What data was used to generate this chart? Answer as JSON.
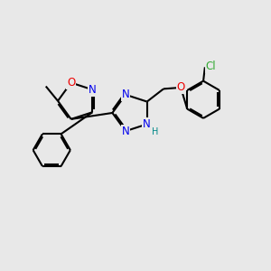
{
  "bg_color": "#e8e8e8",
  "bond_color": "#000000",
  "bond_width": 1.5,
  "dbo": 0.055,
  "N_color": "#0000ee",
  "O_color": "#ee0000",
  "Cl_color": "#33aa33",
  "H_color": "#008888",
  "fs": 8.5,
  "figsize": [
    3.0,
    3.0
  ],
  "dpi": 100,
  "xlim": [
    0,
    10
  ],
  "ylim": [
    0,
    10
  ]
}
